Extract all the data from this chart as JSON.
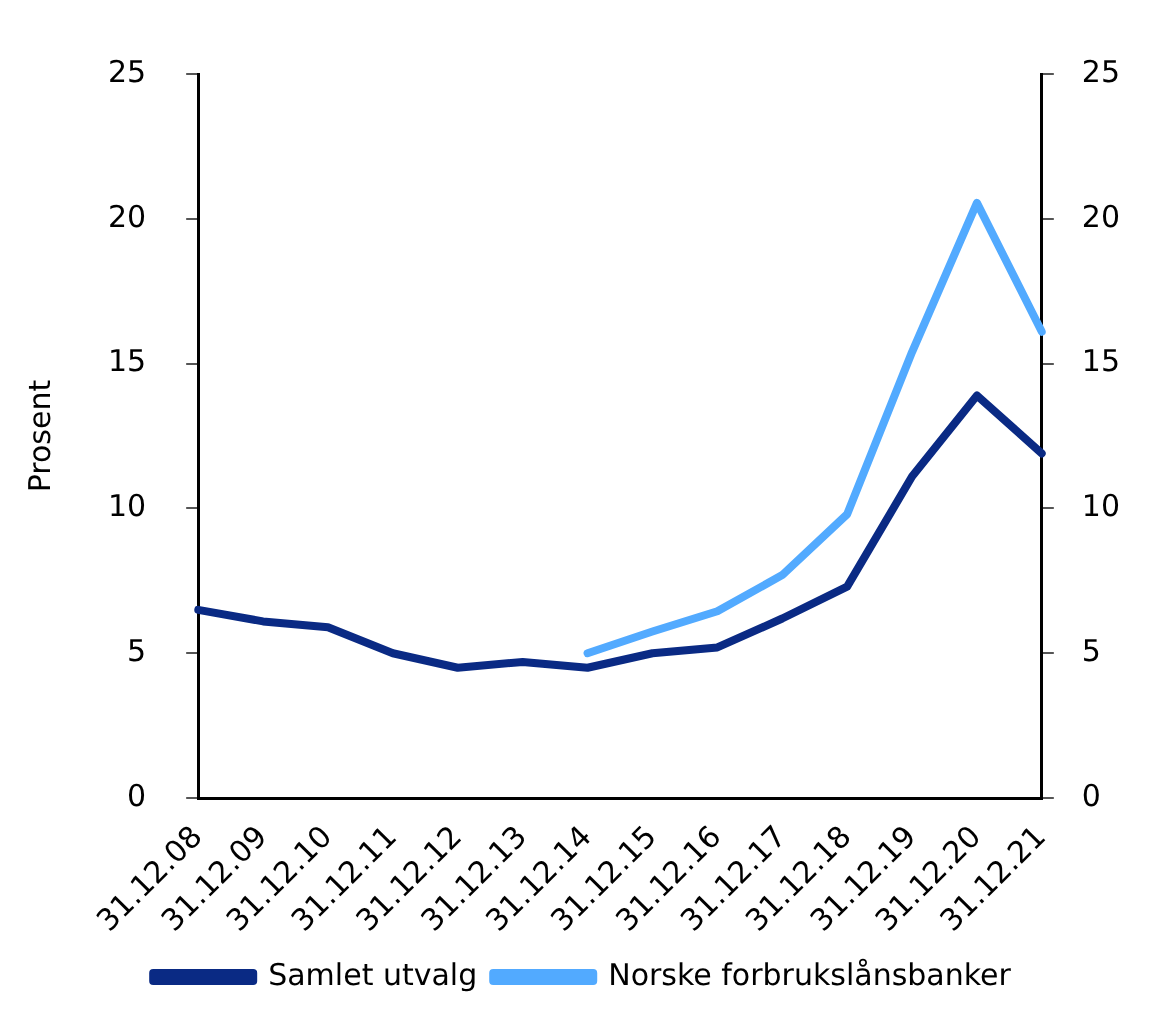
{
  "chart_data": {
    "type": "line",
    "ylabel": "Prosent",
    "categories": [
      "31.12.08",
      "31.12.09",
      "31.12.10",
      "31.12.11",
      "31.12.12",
      "31.12.13",
      "31.12.14",
      "31.12.15",
      "31.12.16",
      "31.12.17",
      "31.12.18",
      "31.12.19",
      "31.12.20",
      "31.12.21"
    ],
    "series": [
      {
        "name": "Samlet utvalg",
        "color": "#0a2a84",
        "values": [
          6.5,
          6.1,
          5.9,
          5.0,
          4.5,
          4.7,
          4.5,
          5.0,
          5.2,
          6.2,
          7.3,
          11.1,
          13.9,
          11.9
        ]
      },
      {
        "name": "Norske forbrukslånsbanker",
        "color": "#52aaff",
        "values": [
          null,
          null,
          null,
          null,
          null,
          null,
          5.0,
          5.75,
          6.45,
          7.7,
          9.8,
          15.4,
          20.55,
          16.1
        ]
      }
    ],
    "ylim": [
      0,
      25
    ],
    "yticks": [
      0,
      5,
      10,
      15,
      20,
      25
    ],
    "y2lim": [
      0,
      25
    ],
    "y2ticks": [
      0,
      5,
      10,
      15,
      20,
      25
    ],
    "grid": false,
    "legend": "bottom",
    "marker": "none",
    "line_style": "solid"
  }
}
